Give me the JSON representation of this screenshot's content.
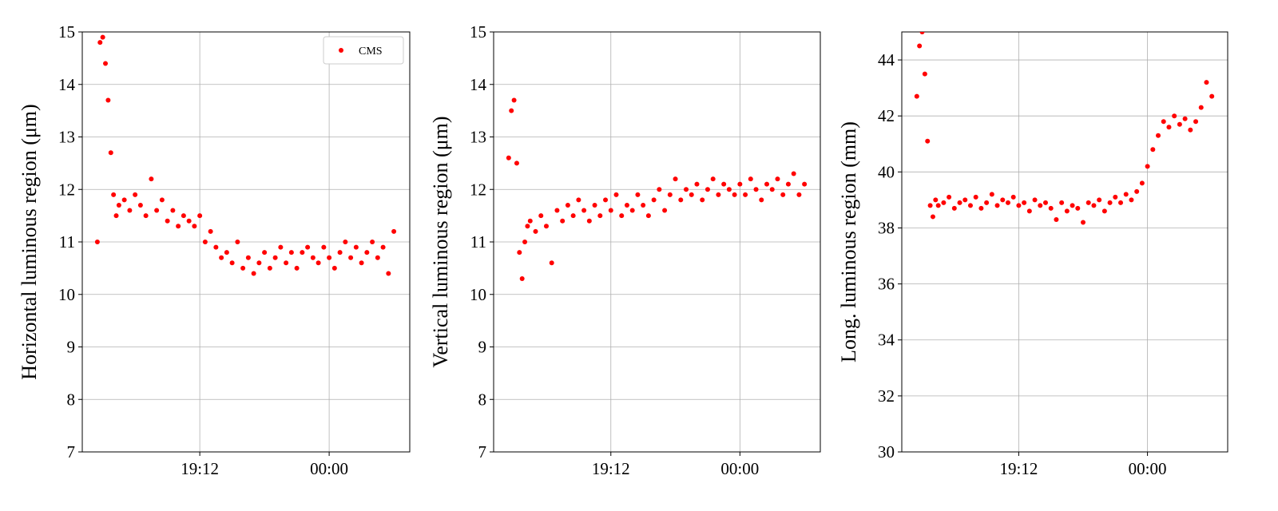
{
  "chart_data": [
    {
      "type": "scatter",
      "y_label": "Horizontal luminous region (μm)",
      "x": [
        15.4,
        15.5,
        15.6,
        15.7,
        15.8,
        15.9,
        16.0,
        16.1,
        16.2,
        16.4,
        16.6,
        16.8,
        17.0,
        17.2,
        17.4,
        17.6,
        17.8,
        18.0,
        18.2,
        18.4,
        18.6,
        18.8,
        19.0,
        19.2,
        19.4,
        19.6,
        19.8,
        20.0,
        20.2,
        20.4,
        20.6,
        20.8,
        21.0,
        21.2,
        21.4,
        21.6,
        21.8,
        22.0,
        22.2,
        22.4,
        22.6,
        22.8,
        23.0,
        23.2,
        23.4,
        23.6,
        23.8,
        24.0,
        24.2,
        24.4,
        24.6,
        24.8,
        25.0,
        25.2,
        25.4,
        25.6,
        25.8,
        26.0,
        26.2,
        26.4
      ],
      "series": [
        {
          "name": "CMS",
          "color": "#ff0000",
          "values": [
            11.0,
            14.8,
            14.9,
            14.4,
            13.7,
            12.7,
            11.9,
            11.5,
            11.7,
            11.8,
            11.6,
            11.9,
            11.7,
            11.5,
            12.2,
            11.6,
            11.8,
            11.4,
            11.6,
            11.3,
            11.5,
            11.4,
            11.3,
            11.5,
            11.0,
            11.2,
            10.9,
            10.7,
            10.8,
            10.6,
            11.0,
            10.5,
            10.7,
            10.4,
            10.6,
            10.8,
            10.5,
            10.7,
            10.9,
            10.6,
            10.8,
            10.5,
            10.8,
            10.9,
            10.7,
            10.6,
            10.9,
            10.7,
            10.5,
            10.8,
            11.0,
            10.7,
            10.9,
            10.6,
            10.8,
            11.0,
            10.7,
            10.9,
            10.4,
            11.2
          ]
        }
      ],
      "xlim": [
        14.84,
        26.99
      ],
      "xticks": [
        {
          "value": 19.2,
          "label": "19:12"
        },
        {
          "value": 24,
          "label": "00:00"
        }
      ],
      "ylim": [
        7,
        15
      ],
      "yticks": [
        7,
        8,
        9,
        10,
        11,
        12,
        13,
        14,
        15
      ],
      "grid": true,
      "legend": "upper right"
    },
    {
      "type": "scatter",
      "y_label": "Vertical luminous region (μm)",
      "x": [
        15.4,
        15.5,
        15.6,
        15.7,
        15.8,
        15.9,
        16.0,
        16.1,
        16.2,
        16.4,
        16.6,
        16.8,
        17.0,
        17.2,
        17.4,
        17.6,
        17.8,
        18.0,
        18.2,
        18.4,
        18.6,
        18.8,
        19.0,
        19.2,
        19.4,
        19.6,
        19.8,
        20.0,
        20.2,
        20.4,
        20.6,
        20.8,
        21.0,
        21.2,
        21.4,
        21.6,
        21.8,
        22.0,
        22.2,
        22.4,
        22.6,
        22.8,
        23.0,
        23.2,
        23.4,
        23.6,
        23.8,
        24.0,
        24.2,
        24.4,
        24.6,
        24.8,
        25.0,
        25.2,
        25.4,
        25.6,
        25.8,
        26.0,
        26.2,
        26.4
      ],
      "series": [
        {
          "color": "#ff0000",
          "values": [
            12.6,
            13.5,
            13.7,
            12.5,
            10.8,
            10.3,
            11.0,
            11.3,
            11.4,
            11.2,
            11.5,
            11.3,
            10.6,
            11.6,
            11.4,
            11.7,
            11.5,
            11.8,
            11.6,
            11.4,
            11.7,
            11.5,
            11.8,
            11.6,
            11.9,
            11.5,
            11.7,
            11.6,
            11.9,
            11.7,
            11.5,
            11.8,
            12.0,
            11.6,
            11.9,
            12.2,
            11.8,
            12.0,
            11.9,
            12.1,
            11.8,
            12.0,
            12.2,
            11.9,
            12.1,
            12.0,
            11.9,
            12.1,
            11.9,
            12.2,
            12.0,
            11.8,
            12.1,
            12.0,
            12.2,
            11.9,
            12.1,
            12.3,
            11.9,
            12.1
          ]
        }
      ],
      "xlim": [
        14.84,
        26.99
      ],
      "xticks": [
        {
          "value": 19.2,
          "label": "19:12"
        },
        {
          "value": 24,
          "label": "00:00"
        }
      ],
      "ylim": [
        7,
        15
      ],
      "yticks": [
        7,
        8,
        9,
        10,
        11,
        12,
        13,
        14,
        15
      ],
      "grid": true
    },
    {
      "type": "scatter",
      "y_label": "Long. luminous region (mm)",
      "x": [
        15.4,
        15.5,
        15.6,
        15.7,
        15.8,
        15.9,
        16.0,
        16.1,
        16.2,
        16.4,
        16.6,
        16.8,
        17.0,
        17.2,
        17.4,
        17.6,
        17.8,
        18.0,
        18.2,
        18.4,
        18.6,
        18.8,
        19.0,
        19.2,
        19.4,
        19.6,
        19.8,
        20.0,
        20.2,
        20.4,
        20.6,
        20.8,
        21.0,
        21.2,
        21.4,
        21.6,
        21.8,
        22.0,
        22.2,
        22.4,
        22.6,
        22.8,
        23.0,
        23.2,
        23.4,
        23.6,
        23.8,
        24.0,
        24.2,
        24.4,
        24.6,
        24.8,
        25.0,
        25.2,
        25.4,
        25.6,
        25.8,
        26.0,
        26.2,
        26.4
      ],
      "series": [
        {
          "color": "#ff0000",
          "values": [
            42.7,
            44.5,
            45.0,
            43.5,
            41.1,
            38.8,
            38.4,
            39.0,
            38.8,
            38.9,
            39.1,
            38.7,
            38.9,
            39.0,
            38.8,
            39.1,
            38.7,
            38.9,
            39.2,
            38.8,
            39.0,
            38.9,
            39.1,
            38.8,
            38.9,
            38.6,
            39.0,
            38.8,
            38.9,
            38.7,
            38.3,
            38.9,
            38.6,
            38.8,
            38.7,
            38.2,
            38.9,
            38.8,
            39.0,
            38.6,
            38.9,
            39.1,
            38.9,
            39.2,
            39.0,
            39.3,
            39.6,
            40.2,
            40.8,
            41.3,
            41.8,
            41.6,
            42.0,
            41.7,
            41.9,
            41.5,
            41.8,
            42.3,
            43.2,
            42.7
          ]
        }
      ],
      "xlim": [
        14.84,
        26.99
      ],
      "xticks": [
        {
          "value": 19.2,
          "label": "19:12"
        },
        {
          "value": 24,
          "label": "00:00"
        }
      ],
      "ylim": [
        30,
        45
      ],
      "yticks": [
        30,
        32,
        34,
        36,
        38,
        40,
        42,
        44
      ],
      "grid": true
    }
  ]
}
